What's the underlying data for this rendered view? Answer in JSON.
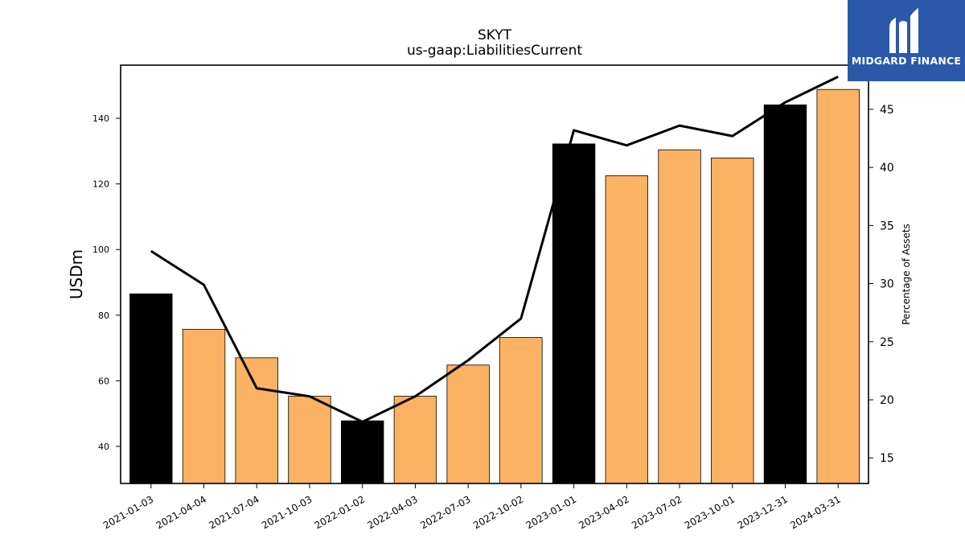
{
  "chart_data": {
    "type": "bar",
    "title": "SKYT",
    "subtitle": "us-gaap:LiabilitiesCurrent",
    "ylabel": "USDm",
    "y2label": "Percentage of Assets",
    "categories": [
      "2021-01-03",
      "2021-04-04",
      "2021-07-04",
      "2021-10-03",
      "2022-01-02",
      "2022-04-03",
      "2022-07-03",
      "2022-10-02",
      "2023-01-01",
      "2023-04-02",
      "2023-07-02",
      "2023-10-01",
      "2023-12-31",
      "2024-03-31"
    ],
    "series": [
      {
        "type": "bar",
        "axis": "left",
        "values": [
          86.5,
          75.7,
          67.0,
          55.3,
          47.8,
          55.3,
          64.8,
          73.2,
          132.2,
          122.5,
          130.4,
          127.9,
          144.1,
          148.8
        ],
        "colors": [
          "#000000",
          "#fbb262",
          "#fbb262",
          "#fbb262",
          "#000000",
          "#fbb262",
          "#fbb262",
          "#fbb262",
          "#000000",
          "#fbb262",
          "#fbb262",
          "#fbb262",
          "#000000",
          "#fbb262"
        ]
      },
      {
        "type": "line",
        "axis": "right",
        "values": [
          32.8,
          29.9,
          21.0,
          20.3,
          18.1,
          20.3,
          23.4,
          27.0,
          43.2,
          41.9,
          43.6,
          42.7,
          45.6,
          47.8
        ],
        "color": "#000000"
      }
    ],
    "ylim": [
      28.7,
      156.2
    ],
    "y2lim": [
      12.8,
      48.8
    ],
    "yticks": [
      40,
      60,
      80,
      100,
      120,
      140
    ],
    "y2ticks": [
      15,
      20,
      25,
      30,
      35,
      40,
      45
    ],
    "grid": false,
    "legend": "none"
  },
  "logo": {
    "text": "MIDGARD FINANCE",
    "color": "#2b58a8"
  }
}
